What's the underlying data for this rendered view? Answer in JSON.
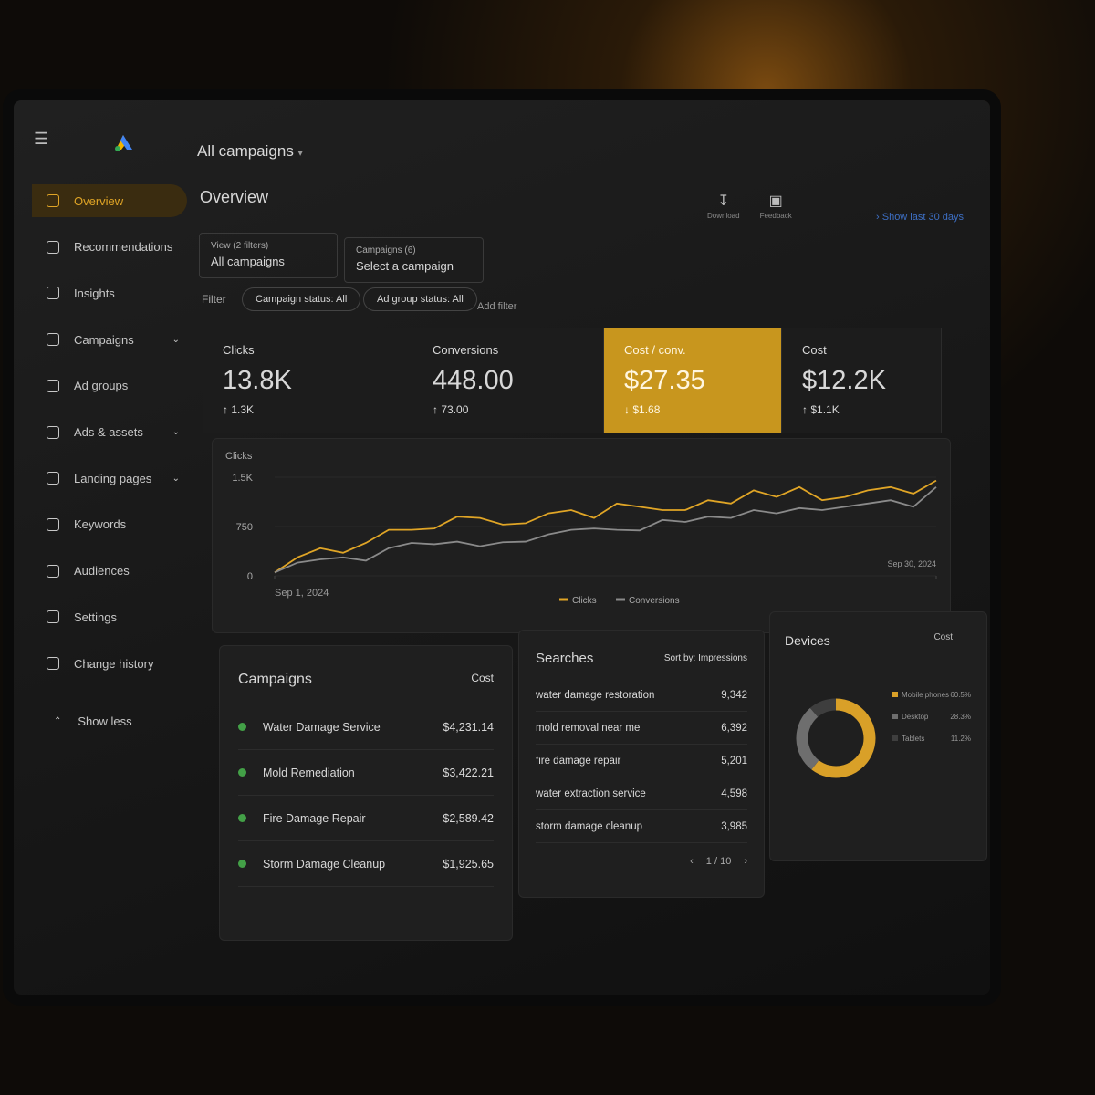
{
  "header": {
    "account": "All campaigns",
    "page_title": "Overview",
    "actions": [
      "Download",
      "Feedback"
    ],
    "date_range": "Show last 30 days"
  },
  "sidebar": {
    "items": [
      {
        "label": "Overview",
        "active": true,
        "expandable": false
      },
      {
        "label": "Recommendations",
        "active": false,
        "expandable": false
      },
      {
        "label": "Insights",
        "active": false,
        "expandable": false
      },
      {
        "label": "Campaigns",
        "active": false,
        "expandable": true
      },
      {
        "label": "Ad groups",
        "active": false,
        "expandable": false
      },
      {
        "label": "Ads & assets",
        "active": false,
        "expandable": true
      },
      {
        "label": "Landing pages",
        "active": false,
        "expandable": true
      },
      {
        "label": "Keywords",
        "active": false,
        "expandable": false
      },
      {
        "label": "Audiences",
        "active": false,
        "expandable": false
      },
      {
        "label": "Settings",
        "active": false,
        "expandable": false
      },
      {
        "label": "Change history",
        "active": false,
        "expandable": false
      }
    ],
    "footer": "Show less"
  },
  "filters": {
    "view": {
      "caption": "View (2 filters)",
      "value": "All campaigns"
    },
    "campaigns": {
      "caption": "Campaigns (6)",
      "value": "Select a campaign"
    },
    "label": "Filter",
    "chips": [
      "Campaign status: All",
      "Ad group status: All"
    ],
    "add": "Add filter"
  },
  "kpis": [
    {
      "label": "Clicks",
      "value": "13.8K",
      "change": "1.3K",
      "trend": "up",
      "highlight": false
    },
    {
      "label": "Conversions",
      "value": "448.00",
      "change": "73.00",
      "trend": "up",
      "highlight": false
    },
    {
      "label": "Cost / conv.",
      "value": "$27.35",
      "change": "$1.68",
      "trend": "down",
      "highlight": true
    },
    {
      "label": "Cost",
      "value": "$12.2K",
      "change": "$1.1K",
      "trend": "up",
      "highlight": false
    }
  ],
  "chart": {
    "type": "line",
    "y_label": "Clicks",
    "ylim": [
      0,
      1500
    ],
    "yticks": [
      0,
      750,
      {
        "value": 1500,
        "label": "1.5K"
      }
    ],
    "xlim": [
      1,
      30
    ],
    "xticks": [
      {
        "value": 1,
        "label": "Sep 1, 2024"
      },
      {
        "value": 30,
        "label": "Sep 30, 2024"
      }
    ],
    "x": [
      1,
      2,
      3,
      4,
      5,
      6,
      7,
      8,
      9,
      10,
      11,
      12,
      13,
      14,
      15,
      16,
      17,
      18,
      19,
      20,
      21,
      22,
      23,
      24,
      25,
      26,
      27,
      28,
      29,
      30
    ],
    "series": [
      {
        "name": "Clicks",
        "color": "#e0a526",
        "values": [
          50,
          280,
          420,
          350,
          500,
          700,
          700,
          720,
          900,
          880,
          780,
          800,
          950,
          1000,
          880,
          1100,
          1050,
          1000,
          1000,
          1150,
          1100,
          1300,
          1200,
          1350,
          1150,
          1200,
          1300,
          1350,
          1250,
          1450
        ]
      },
      {
        "name": "Conversions",
        "color": "#8a8a8a",
        "values": [
          50,
          200,
          250,
          280,
          230,
          420,
          500,
          480,
          520,
          450,
          510,
          520,
          630,
          700,
          720,
          700,
          690,
          850,
          820,
          900,
          880,
          1000,
          950,
          1030,
          1000,
          1050,
          1100,
          1150,
          1050,
          1350
        ]
      }
    ]
  },
  "campaigns": {
    "title": "Campaigns",
    "sort": "Cost",
    "rows": [
      {
        "name": "Water Damage Service",
        "cost": "$4,231.14"
      },
      {
        "name": "Mold Remediation",
        "cost": "$3,422.21"
      },
      {
        "name": "Fire Damage Repair",
        "cost": "$2,589.42"
      },
      {
        "name": "Storm Damage Cleanup",
        "cost": "$1,925.65"
      }
    ],
    "status_color": "#43a047"
  },
  "searches": {
    "title": "Searches",
    "sort": "Sort by: Impressions",
    "rows": [
      {
        "term": "water damage restoration",
        "count": "9,342"
      },
      {
        "term": "mold removal near me",
        "count": "6,392"
      },
      {
        "term": "fire damage repair",
        "count": "5,201"
      },
      {
        "term": "water extraction service",
        "count": "4,598"
      },
      {
        "term": "storm damage cleanup",
        "count": "3,985"
      }
    ],
    "pager": "1 / 10"
  },
  "devices": {
    "type": "donut",
    "title": "Devices",
    "metric": "Cost",
    "categories": [
      "Mobile phones",
      "Desktop",
      "Tablets"
    ],
    "values": [
      60.5,
      28.3,
      11.2
    ],
    "value_labels": [
      "60.5%",
      "28.3%",
      "11.2%"
    ],
    "colors": [
      "#d9a028",
      "#6e6e6e",
      "#3e3e3e"
    ]
  }
}
